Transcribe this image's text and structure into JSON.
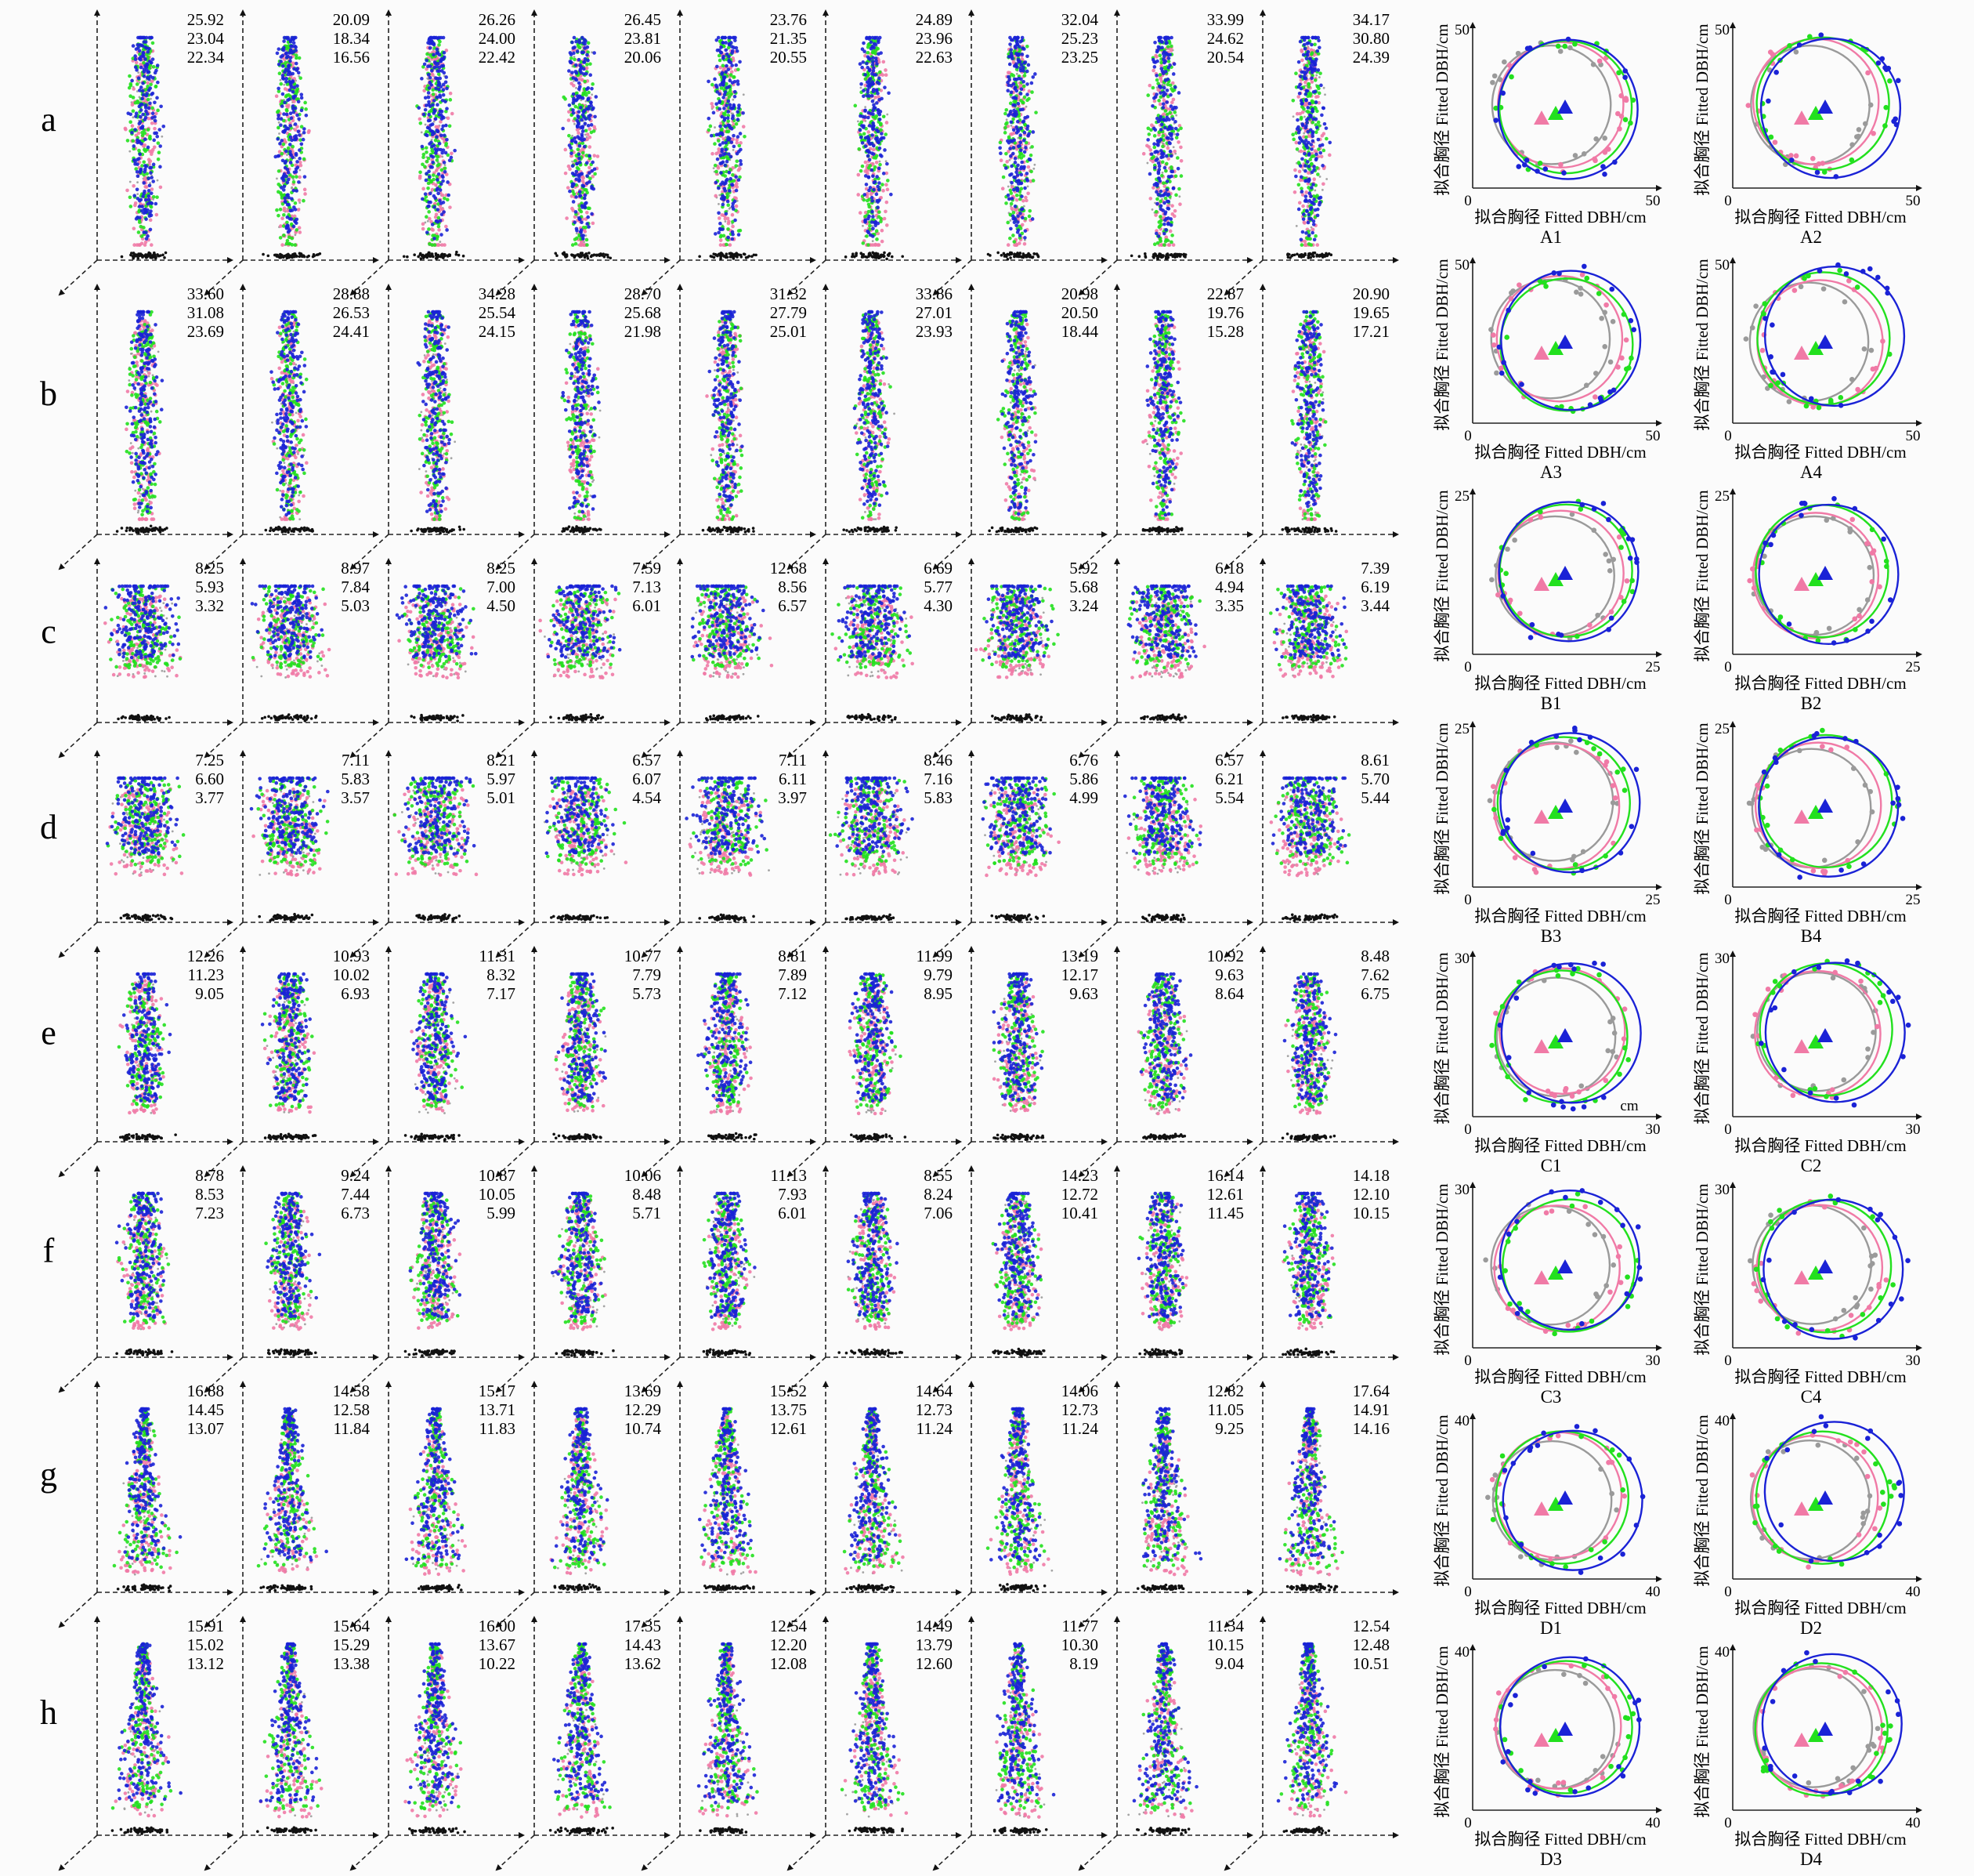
{
  "row_labels": [
    "a",
    "b",
    "c",
    "d",
    "e",
    "f",
    "g",
    "h"
  ],
  "tree_heights": {
    "a": [
      [
        "25.92",
        "23.04",
        "22.34"
      ],
      [
        "20.09",
        "18.34",
        "16.56"
      ],
      [
        "26.26",
        "24.00",
        "22.42"
      ],
      [
        "26.45",
        "23.81",
        "20.06"
      ],
      [
        "23.76",
        "21.35",
        "20.55"
      ],
      [
        "24.89",
        "23.96",
        "22.63"
      ],
      [
        "32.04",
        "25.23",
        "23.25"
      ],
      [
        "33.99",
        "24.62",
        "20.54"
      ],
      [
        "34.17",
        "30.80",
        "24.39"
      ]
    ],
    "b": [
      [
        "33.60",
        "31.08",
        "23.69"
      ],
      [
        "28.88",
        "26.53",
        "24.41"
      ],
      [
        "34.28",
        "25.54",
        "24.15"
      ],
      [
        "28.70",
        "25.68",
        "21.98"
      ],
      [
        "31.32",
        "27.79",
        "25.01"
      ],
      [
        "33.86",
        "27.01",
        "23.93"
      ],
      [
        "20.98",
        "20.50",
        "18.44"
      ],
      [
        "22.87",
        "19.76",
        "15.28"
      ],
      [
        "20.90",
        "19.65",
        "17.21"
      ]
    ],
    "c": [
      [
        "8.25",
        "5.93",
        "3.32"
      ],
      [
        "8.97",
        "7.84",
        "5.03"
      ],
      [
        "8.25",
        "7.00",
        "4.50"
      ],
      [
        "7.59",
        "7.13",
        "6.01"
      ],
      [
        "12.68",
        "8.56",
        "6.57"
      ],
      [
        "6.69",
        "5.77",
        "4.30"
      ],
      [
        "5.92",
        "5.68",
        "3.24"
      ],
      [
        "6.18",
        "4.94",
        "3.35"
      ],
      [
        "7.39",
        "6.19",
        "3.44"
      ]
    ],
    "d": [
      [
        "7.25",
        "6.60",
        "3.77"
      ],
      [
        "7.11",
        "5.83",
        "3.57"
      ],
      [
        "8.21",
        "5.97",
        "5.01"
      ],
      [
        "6.57",
        "6.07",
        "4.54"
      ],
      [
        "7.11",
        "6.11",
        "3.97"
      ],
      [
        "8.46",
        "7.16",
        "5.83"
      ],
      [
        "6.76",
        "5.86",
        "4.99"
      ],
      [
        "6.57",
        "6.21",
        "5.54"
      ],
      [
        "8.61",
        "5.70",
        "5.44"
      ]
    ],
    "e": [
      [
        "12.26",
        "11.23",
        "9.05"
      ],
      [
        "10.93",
        "10.02",
        "6.93"
      ],
      [
        "11.31",
        "8.32",
        "7.17"
      ],
      [
        "10.77",
        "7.79",
        "5.73"
      ],
      [
        "8.81",
        "7.89",
        "7.12"
      ],
      [
        "11.99",
        "9.79",
        "8.95"
      ],
      [
        "13.19",
        "12.17",
        "9.63"
      ],
      [
        "10.92",
        "9.63",
        "8.64"
      ],
      [
        "8.48",
        "7.62",
        "6.75"
      ]
    ],
    "f": [
      [
        "8.78",
        "8.53",
        "7.23"
      ],
      [
        "9.24",
        "7.44",
        "6.73"
      ],
      [
        "10.87",
        "10.05",
        "5.99"
      ],
      [
        "10.06",
        "8.48",
        "5.71"
      ],
      [
        "11.13",
        "7.93",
        "6.01"
      ],
      [
        "8.55",
        "8.24",
        "7.06"
      ],
      [
        "14.23",
        "12.72",
        "10.41"
      ],
      [
        "16.14",
        "12.61",
        "11.45"
      ],
      [
        "14.18",
        "12.10",
        "10.15"
      ]
    ],
    "g": [
      [
        "16.88",
        "14.45",
        "13.07"
      ],
      [
        "14.58",
        "12.58",
        "11.84"
      ],
      [
        "15.17",
        "13.71",
        "11.83"
      ],
      [
        "13.69",
        "12.29",
        "10.74"
      ],
      [
        "15.52",
        "13.75",
        "12.61"
      ],
      [
        "14.64",
        "12.73",
        "11.24"
      ],
      [
        "14.06",
        "12.73",
        "11.24"
      ],
      [
        "12.82",
        "11.05",
        "9.25"
      ],
      [
        "17.64",
        "14.91",
        "14.16"
      ]
    ],
    "h": [
      [
        "15.91",
        "15.02",
        "13.12"
      ],
      [
        "15.64",
        "15.29",
        "13.38"
      ],
      [
        "16.00",
        "13.67",
        "10.22"
      ],
      [
        "17.35",
        "14.43",
        "13.62"
      ],
      [
        "12.54",
        "12.20",
        "12.08"
      ],
      [
        "14.49",
        "13.79",
        "12.60"
      ],
      [
        "11.77",
        "10.30",
        "8.19"
      ],
      [
        "11.34",
        "10.15",
        "9.04"
      ],
      [
        "12.54",
        "12.48",
        "10.51"
      ]
    ]
  },
  "dbh_axis": {
    "ylabel": "拟合胸径 Fitted DBH/cm",
    "xlabel": "拟合胸径 Fitted DBH/cm",
    "origin": "0",
    "unit_note": "cm"
  },
  "dbh_panels": [
    {
      "id": "A1",
      "max": "50"
    },
    {
      "id": "A2",
      "max": "50"
    },
    {
      "id": "A3",
      "max": "50"
    },
    {
      "id": "A4",
      "max": "50"
    },
    {
      "id": "B1",
      "max": "25"
    },
    {
      "id": "B2",
      "max": "25"
    },
    {
      "id": "B3",
      "max": "25"
    },
    {
      "id": "B4",
      "max": "25"
    },
    {
      "id": "C1",
      "max": "30"
    },
    {
      "id": "C2",
      "max": "30"
    },
    {
      "id": "C3",
      "max": "30"
    },
    {
      "id": "C4",
      "max": "30"
    },
    {
      "id": "D1",
      "max": "40"
    },
    {
      "id": "D2",
      "max": "40"
    },
    {
      "id": "D3",
      "max": "40"
    },
    {
      "id": "D4",
      "max": "40"
    }
  ],
  "colors": {
    "blue": "#1a22d6",
    "green": "#22e01e",
    "pink": "#f07aa6",
    "gray": "#9a9a9a",
    "black": "#111111"
  }
}
